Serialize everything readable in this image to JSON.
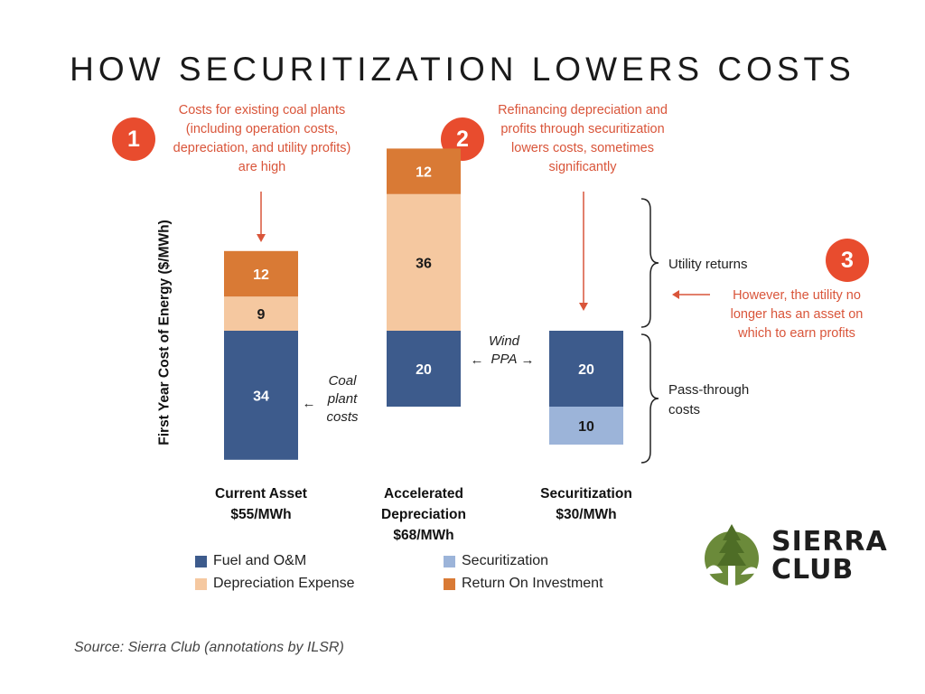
{
  "title": "HOW SECURITIZATION LOWERS COSTS",
  "annotations": {
    "one": {
      "badge": "1",
      "text": "Costs for existing coal plants (including operation costs, depreciation, and utility profits) are high"
    },
    "two": {
      "badge": "2",
      "text": "Refinancing depreciation and profits through securitization lowers costs, sometimes significantly"
    },
    "three": {
      "badge": "3",
      "text": "However, the utility no longer has an asset on which to earn profits"
    },
    "coal": "Coal plant costs",
    "wind": "Wind PPA",
    "utility_returns": "Utility returns",
    "pass_through": "Pass-through costs",
    "arrow_left": "←",
    "arrow_right": "→"
  },
  "source": "Source: Sierra Club (annotations by ILSR)",
  "logo": {
    "line1": "SIERRA",
    "line2": "CLUB"
  },
  "colors": {
    "fuel": "#3d5b8c",
    "securitization": "#9cb4d9",
    "depreciation": "#f5c8a0",
    "return": "#d97a35",
    "annotation": "#d9553a",
    "badge": "#e84c2e"
  },
  "chart_data": {
    "type": "bar",
    "stacked": true,
    "ylabel": "First Year Cost of Energy ($/MWh)",
    "categories": [
      {
        "name": "Current Asset",
        "total": "$55/MWh"
      },
      {
        "name": "Accelerated Depreciation",
        "total": "$68/MWh"
      },
      {
        "name": "Securitization",
        "total": "$30/MWh"
      }
    ],
    "series": [
      {
        "name": "Fuel and O&M",
        "values": [
          34,
          20,
          20
        ]
      },
      {
        "name": "Securitization",
        "values": [
          0,
          0,
          10
        ]
      },
      {
        "name": "Depreciation Expense",
        "values": [
          9,
          36,
          0
        ]
      },
      {
        "name": "Return On Investment",
        "values": [
          12,
          12,
          0
        ]
      }
    ],
    "legend": [
      "Fuel and O&M",
      "Securitization",
      "Depreciation Expense",
      "Return On Investment"
    ],
    "legend_placement": "bottom",
    "grid": false
  }
}
